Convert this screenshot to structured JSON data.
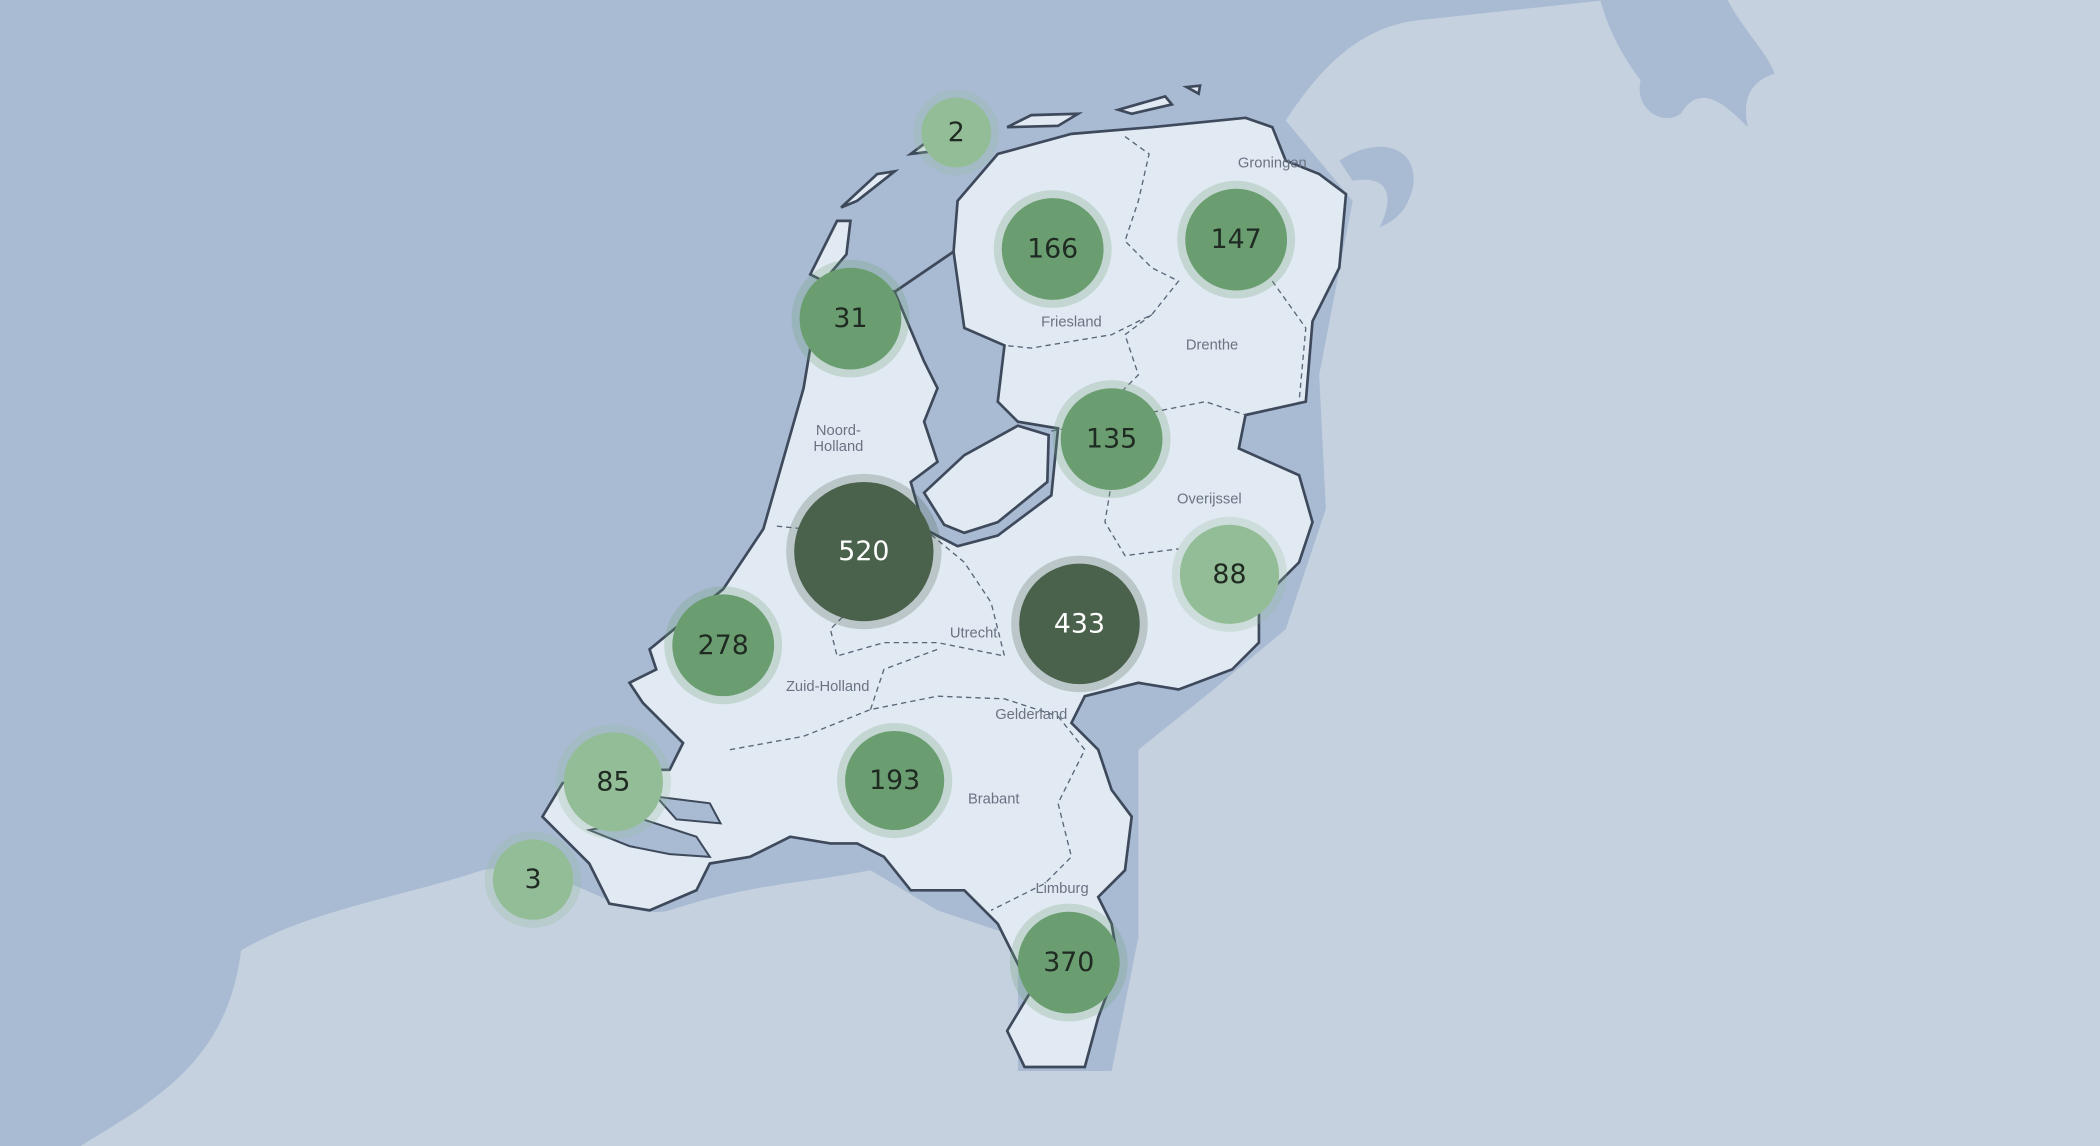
{
  "map": {
    "colors": {
      "sea": "#a9bbd3",
      "neighbour_land": "#c5d1df",
      "netherlands_land": "#e1e9f3",
      "border": "#3e4a5c",
      "cluster_light": "#93bd96",
      "cluster_medium": "#6a9e70",
      "cluster_dark": "#4a614c"
    },
    "provinces": [
      {
        "id": "groningen",
        "label": "Groningen"
      },
      {
        "id": "friesland",
        "label": "Friesland"
      },
      {
        "id": "drenthe",
        "label": "Drenthe"
      },
      {
        "id": "noord-holland",
        "label": "Noord-",
        "label2": "Holland"
      },
      {
        "id": "overijssel",
        "label": "Overijssel"
      },
      {
        "id": "utrecht",
        "label": "Utrecht"
      },
      {
        "id": "gelderland",
        "label": "Gelderland"
      },
      {
        "id": "zuid-holland",
        "label": "Zuid-Holland"
      },
      {
        "id": "noord-brabant",
        "label": "Brabant"
      },
      {
        "id": "limburg",
        "label": "Limburg"
      }
    ],
    "clusters": [
      {
        "id": "wadden",
        "count": "2",
        "level": "light"
      },
      {
        "id": "friesland",
        "count": "166",
        "level": "medium"
      },
      {
        "id": "groningen",
        "count": "147",
        "level": "medium"
      },
      {
        "id": "noord-holland-north",
        "count": "31",
        "level": "medium"
      },
      {
        "id": "overijssel-north",
        "count": "135",
        "level": "medium"
      },
      {
        "id": "amsterdam-utrecht",
        "count": "520",
        "level": "dark"
      },
      {
        "id": "gelderland",
        "count": "433",
        "level": "dark"
      },
      {
        "id": "twente",
        "count": "88",
        "level": "light"
      },
      {
        "id": "zuid-holland",
        "count": "278",
        "level": "medium"
      },
      {
        "id": "zeeland",
        "count": "85",
        "level": "light"
      },
      {
        "id": "brabant",
        "count": "193",
        "level": "medium"
      },
      {
        "id": "zeeland-south",
        "count": "3",
        "level": "light"
      },
      {
        "id": "limburg",
        "count": "370",
        "level": "medium"
      }
    ]
  }
}
